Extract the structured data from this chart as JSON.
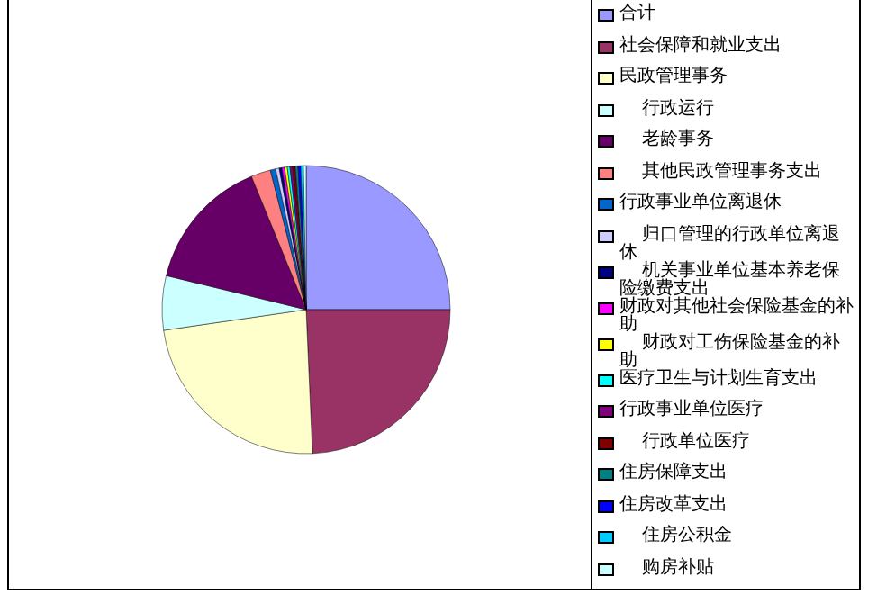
{
  "chart_data": {
    "type": "pie",
    "legend": "right",
    "categories": [
      "合计",
      "社会保障和就业支出",
      "民政管理事务",
      "    行政运行",
      "    老龄事务",
      "    其他民政管理事务支出",
      "行政事业单位离退休",
      "    归口管理的行政单位离退休",
      "    机关事业单位基本养老保险缴费支出",
      "财政对其他社会保险基金的补助",
      "    财政对工伤保险基金的补助",
      "医疗卫生与计划生育支出",
      "行政事业单位医疗",
      "    行政单位医疗",
      "住房保障支出",
      "住房改革支出",
      "    住房公积金",
      "    购房补贴"
    ],
    "values": [
      25,
      24.3,
      23.4,
      6.1,
      15,
      2.2,
      0.6,
      0.4,
      0.3,
      0.3,
      0.3,
      0.3,
      0.3,
      0.3,
      0.3,
      0.3,
      0.3,
      0.3
    ],
    "colors": [
      "#9999ff",
      "#993366",
      "#ffffcc",
      "#ccffff",
      "#660066",
      "#ff8080",
      "#0066cc",
      "#ccccff",
      "#000080",
      "#ff00ff",
      "#ffff00",
      "#00ffff",
      "#800080",
      "#800000",
      "#008080",
      "#0000ff",
      "#00ccff",
      "#ccffff"
    ]
  }
}
